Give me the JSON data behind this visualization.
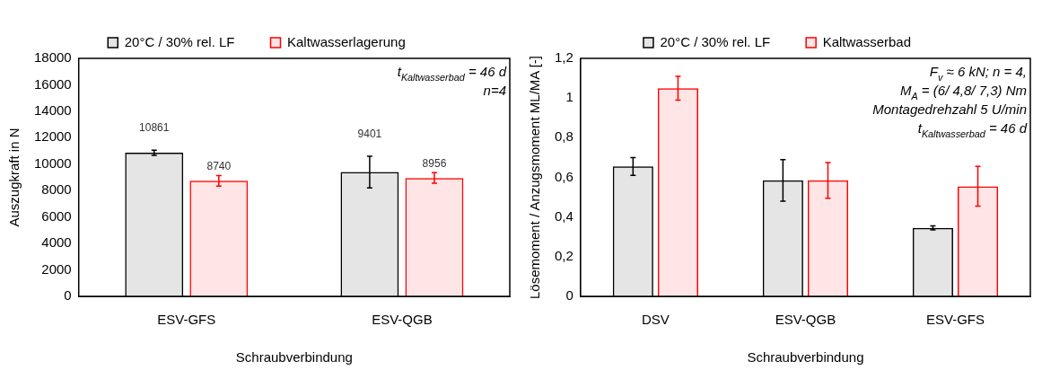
{
  "chart_data": [
    {
      "type": "bar",
      "xlabel": "Schraubverbindung",
      "ylabel": "Auszugkraft in N",
      "categories": [
        "ESV-GFS",
        "ESV-QGB"
      ],
      "series": [
        {
          "name": "20°C / 30% rel. LF",
          "color": "#000000",
          "values": [
            10861,
            9401
          ],
          "errors": [
            200,
            1200
          ]
        },
        {
          "name": "Kaltwasserlagerung",
          "color": "#ff0000",
          "values": [
            8740,
            8956
          ],
          "errors": [
            400,
            400
          ]
        }
      ],
      "ylim": [
        0,
        18000
      ],
      "yticks": [
        0,
        2000,
        4000,
        6000,
        8000,
        10000,
        12000,
        14000,
        16000,
        18000
      ],
      "data_labels": true,
      "grid": false,
      "legend": "top",
      "annotations": [
        "t$_{Kaltwasserbad}$ = 46 d",
        "n=4"
      ]
    },
    {
      "type": "bar",
      "xlabel": "Schraubverbindung",
      "ylabel": "Lösemoment / Anzugsmoment ML/MA [-]",
      "categories": [
        "DSV",
        "ESV-QGB",
        "ESV-GFS"
      ],
      "series": [
        {
          "name": "20°C / 30% rel. LF",
          "color": "#000000",
          "values": [
            0.655,
            0.585,
            0.345
          ],
          "errors": [
            0.045,
            0.105,
            0.01
          ]
        },
        {
          "name": "Kaltwasserbad",
          "color": "#ff0000",
          "values": [
            1.05,
            0.585,
            0.555
          ],
          "errors": [
            0.06,
            0.09,
            0.1
          ]
        }
      ],
      "ylim": [
        0,
        1.2
      ],
      "yticks": [
        0,
        {
          "value": 0.2,
          "label": "0,2"
        },
        {
          "value": 0.4,
          "label": "0,4"
        },
        {
          "value": 0.6,
          "label": "0,6"
        },
        {
          "value": 0.8,
          "label": "0,8"
        },
        1,
        {
          "value": 1.2,
          "label": "1,2"
        }
      ],
      "grid": false,
      "legend": "top",
      "annotations": [
        "F$_{v}$ ≈ 6 kN; n = 4,",
        "M$_{A}$ = (6/ 4,8/ 7,3) Nm",
        "Montagedrehzahl 5 U/min",
        "t$_{Kaltwasserbad}$ = 46 d"
      ]
    }
  ]
}
